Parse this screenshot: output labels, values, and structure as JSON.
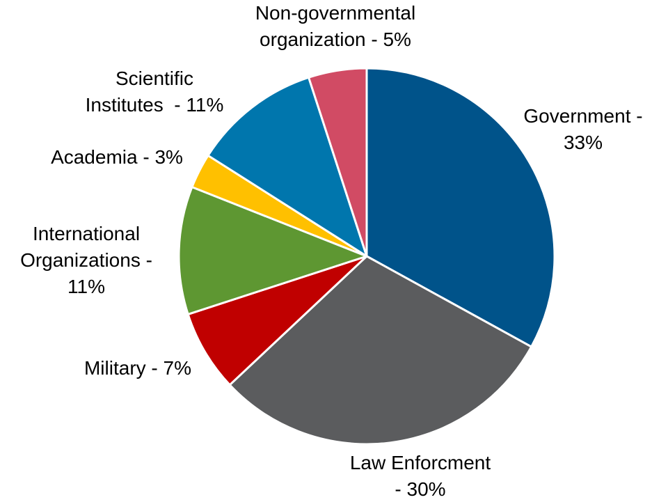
{
  "chart_data": {
    "type": "pie",
    "title": "",
    "start_angle_deg": 0,
    "direction": "clockwise",
    "slices": [
      {
        "label": "Government - 33%",
        "label_lines": [
          "Government -",
          "33%"
        ],
        "value": 33,
        "color": "#00538a"
      },
      {
        "label": "Law Enforcment - 30%",
        "label_lines": [
          "Law Enforcment",
          "- 30%"
        ],
        "value": 30,
        "color": "#5b5c5e"
      },
      {
        "label": "Military - 7%",
        "label_lines": [
          "Military - 7%"
        ],
        "value": 7,
        "color": "#c00000"
      },
      {
        "label": "International Organizations - 11%",
        "label_lines": [
          "International",
          "Organizations -",
          "11%"
        ],
        "value": 11,
        "color": "#5e9732"
      },
      {
        "label": "Academia - 3%",
        "label_lines": [
          "Academia - 3%"
        ],
        "value": 3,
        "color": "#ffc000"
      },
      {
        "label": "Scientific Institutes - 11%",
        "label_lines": [
          "Scientific",
          "Institutes  - 11%"
        ],
        "value": 11,
        "color": "#0076ad"
      },
      {
        "label": "Non-governmental organization - 5%",
        "label_lines": [
          "Non-governmental",
          "organization - 5%"
        ],
        "value": 5,
        "color": "#d14b64"
      }
    ]
  }
}
